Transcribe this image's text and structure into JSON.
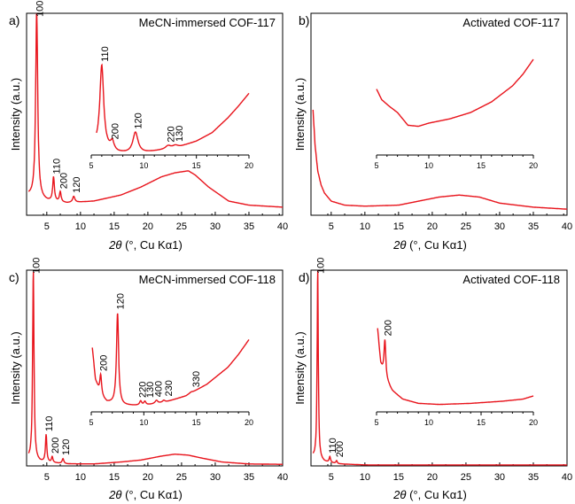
{
  "colors": {
    "series": "#e8141c",
    "axis": "#000000"
  },
  "chart_data": [
    {
      "type": "line",
      "panel_letter": "a)",
      "title": "MeCN-immersed COF-117",
      "xlabel_theta": "2θ",
      "xlabel_rest": " (°, Cu Kα1)",
      "ylabel": "Intensity (a.u.)",
      "xlim": [
        2,
        40
      ],
      "xticks": [
        5,
        10,
        15,
        20,
        25,
        30,
        35,
        40
      ],
      "main": {
        "base": [
          [
            2,
            0.1
          ],
          [
            5,
            0.07
          ],
          [
            8,
            0.06
          ],
          [
            12,
            0.07
          ],
          [
            16,
            0.1
          ],
          [
            19,
            0.14
          ],
          [
            22,
            0.19
          ],
          [
            24,
            0.21
          ],
          [
            26,
            0.22
          ],
          [
            27,
            0.2
          ],
          [
            29,
            0.14
          ],
          [
            32,
            0.07
          ],
          [
            35,
            0.05
          ],
          [
            40,
            0.04
          ]
        ],
        "peaks": [
          [
            3.5,
            0.93,
            0.18
          ],
          [
            6.0,
            0.12,
            0.15
          ],
          [
            7.0,
            0.05,
            0.15
          ],
          [
            9.0,
            0.03,
            0.2
          ]
        ]
      },
      "peak_labels": [
        {
          "x": 3.5,
          "text": "100"
        },
        {
          "x": 6.0,
          "text": "110"
        },
        {
          "x": 7.1,
          "text": "200"
        },
        {
          "x": 9.0,
          "text": "120"
        }
      ],
      "inset": {
        "xlim": [
          5,
          20
        ],
        "xticks": [
          5,
          10,
          15,
          20
        ],
        "base": [
          [
            5.5,
            0.08
          ],
          [
            6.4,
            0.05
          ],
          [
            7.5,
            0.02
          ],
          [
            9,
            0.01
          ],
          [
            10,
            0.02
          ],
          [
            12,
            0.05
          ],
          [
            13.5,
            0.08
          ],
          [
            15,
            0.13
          ],
          [
            16.5,
            0.21
          ],
          [
            18,
            0.35
          ],
          [
            19,
            0.46
          ],
          [
            20,
            0.58
          ]
        ],
        "peaks": [
          [
            6.0,
            0.78,
            0.22
          ],
          [
            7.0,
            0.08,
            0.2
          ],
          [
            9.2,
            0.2,
            0.3
          ],
          [
            12.3,
            0.03,
            0.3
          ],
          [
            13.0,
            0.02,
            0.3
          ]
        ],
        "peak_labels": [
          {
            "x": 6.0,
            "text": "110"
          },
          {
            "x": 7.0,
            "text": "200"
          },
          {
            "x": 9.2,
            "text": "120"
          },
          {
            "x": 12.3,
            "text": "220"
          },
          {
            "x": 13.1,
            "text": "130"
          }
        ]
      }
    },
    {
      "type": "line",
      "panel_letter": "b)",
      "title": "Activated COF-117",
      "xlabel_theta": "2θ",
      "xlabel_rest": " (°, Cu Kα1)",
      "ylabel": "Intensity (a.u.)",
      "xlim": [
        2,
        40
      ],
      "xticks": [
        5,
        10,
        15,
        20,
        25,
        30,
        35,
        40
      ],
      "main": {
        "base": [
          [
            2.2,
            0.58
          ],
          [
            2.6,
            0.35
          ],
          [
            3,
            0.22
          ],
          [
            3.5,
            0.15
          ],
          [
            4,
            0.11
          ],
          [
            5,
            0.07
          ],
          [
            7,
            0.05
          ],
          [
            10,
            0.045
          ],
          [
            15,
            0.05
          ],
          [
            18,
            0.07
          ],
          [
            21,
            0.09
          ],
          [
            24,
            0.1
          ],
          [
            27,
            0.09
          ],
          [
            30,
            0.06
          ],
          [
            35,
            0.04
          ],
          [
            40,
            0.03
          ]
        ],
        "peaks": []
      },
      "peak_labels": [],
      "inset": {
        "xlim": [
          5,
          20
        ],
        "xticks": [
          5,
          10,
          15,
          20
        ],
        "base": [
          [
            5,
            0.62
          ],
          [
            5.5,
            0.52
          ],
          [
            6.2,
            0.46
          ],
          [
            7,
            0.4
          ],
          [
            8,
            0.28
          ],
          [
            9,
            0.27
          ],
          [
            10,
            0.3
          ],
          [
            12,
            0.34
          ],
          [
            14,
            0.4
          ],
          [
            16,
            0.5
          ],
          [
            18,
            0.65
          ],
          [
            19,
            0.76
          ],
          [
            20,
            0.9
          ]
        ],
        "peaks": [],
        "peak_labels": []
      }
    },
    {
      "type": "line",
      "panel_letter": "c)",
      "title": "MeCN-immersed COF-118",
      "xlabel_theta": "2θ",
      "xlabel_rest": " (°, Cu Kα1)",
      "ylabel": "Intensity (a.u.)",
      "xlim": [
        2,
        40
      ],
      "xticks": [
        5,
        10,
        15,
        20,
        25,
        30,
        35,
        40
      ],
      "main": {
        "base": [
          [
            2,
            0.04
          ],
          [
            4,
            0.02
          ],
          [
            8,
            0.01
          ],
          [
            12,
            0.01
          ],
          [
            16,
            0.02
          ],
          [
            19,
            0.03
          ],
          [
            22,
            0.05
          ],
          [
            24,
            0.06
          ],
          [
            26,
            0.055
          ],
          [
            28,
            0.04
          ],
          [
            31,
            0.02
          ],
          [
            35,
            0.01
          ],
          [
            40,
            0.008
          ]
        ],
        "peaks": [
          [
            3.0,
            0.97,
            0.12
          ],
          [
            4.9,
            0.14,
            0.12
          ],
          [
            5.8,
            0.03,
            0.12
          ],
          [
            7.4,
            0.025,
            0.15
          ]
        ]
      },
      "peak_labels": [
        {
          "x": 3.0,
          "text": "100"
        },
        {
          "x": 4.9,
          "text": "110"
        },
        {
          "x": 5.8,
          "text": "200"
        },
        {
          "x": 7.4,
          "text": "120"
        }
      ],
      "inset": {
        "xlim": [
          5,
          20
        ],
        "xticks": [
          5,
          10,
          15,
          20
        ],
        "base": [
          [
            5.1,
            0.6
          ],
          [
            5.4,
            0.3
          ],
          [
            5.9,
            0.15
          ],
          [
            6.5,
            0.09
          ],
          [
            8,
            0.06
          ],
          [
            10,
            0.06
          ],
          [
            12,
            0.09
          ],
          [
            14,
            0.15
          ],
          [
            16,
            0.26
          ],
          [
            18,
            0.42
          ],
          [
            19,
            0.54
          ],
          [
            20,
            0.68
          ]
        ],
        "peaks": [
          [
            5.9,
            0.2,
            0.1
          ],
          [
            7.5,
            0.86,
            0.12
          ],
          [
            9.7,
            0.04,
            0.12
          ],
          [
            10.1,
            0.035,
            0.12
          ],
          [
            11.2,
            0.03,
            0.15
          ],
          [
            11.9,
            0.02,
            0.15
          ],
          [
            14.5,
            0.01,
            0.2
          ]
        ],
        "peak_labels": [
          {
            "x": 5.9,
            "text": "200"
          },
          {
            "x": 7.5,
            "text": "120"
          },
          {
            "x": 9.6,
            "text": "220"
          },
          {
            "x": 10.3,
            "text": "130"
          },
          {
            "x": 11.1,
            "text": "400"
          },
          {
            "x": 12.1,
            "text": "230"
          },
          {
            "x": 14.7,
            "text": "330"
          }
        ]
      }
    },
    {
      "type": "line",
      "panel_letter": "d)",
      "title": "Activated COF-118",
      "xlabel_theta": "2θ",
      "xlabel_rest": " (°, Cu Kα1)",
      "ylabel": "Intensity (a.u.)",
      "xlim": [
        2,
        40
      ],
      "xticks": [
        5,
        10,
        15,
        20,
        25,
        30,
        35,
        40
      ],
      "main": {
        "base": [
          [
            2,
            0.05
          ],
          [
            4,
            0.02
          ],
          [
            6,
            0.01
          ],
          [
            10,
            0.005
          ],
          [
            20,
            0.005
          ],
          [
            30,
            0.005
          ],
          [
            40,
            0.005
          ]
        ],
        "peaks": [
          [
            3.0,
            0.98,
            0.1
          ],
          [
            4.8,
            0.03,
            0.12
          ],
          [
            5.8,
            0.015,
            0.12
          ]
        ]
      },
      "peak_labels": [
        {
          "x": 3.0,
          "text": "100"
        },
        {
          "x": 4.8,
          "text": "110"
        },
        {
          "x": 5.8,
          "text": "200"
        }
      ],
      "inset": {
        "xlim": [
          5,
          20
        ],
        "xticks": [
          5,
          10,
          15,
          20
        ],
        "base": [
          [
            5.1,
            0.78
          ],
          [
            5.4,
            0.45
          ],
          [
            5.8,
            0.32
          ],
          [
            6.5,
            0.2
          ],
          [
            7.5,
            0.12
          ],
          [
            9,
            0.08
          ],
          [
            11,
            0.07
          ],
          [
            14,
            0.08
          ],
          [
            17,
            0.1
          ],
          [
            19,
            0.12
          ],
          [
            20,
            0.15
          ]
        ],
        "peaks": [
          [
            5.8,
            0.36,
            0.1
          ]
        ],
        "peak_labels": [
          {
            "x": 5.8,
            "text": "200"
          }
        ]
      }
    }
  ]
}
